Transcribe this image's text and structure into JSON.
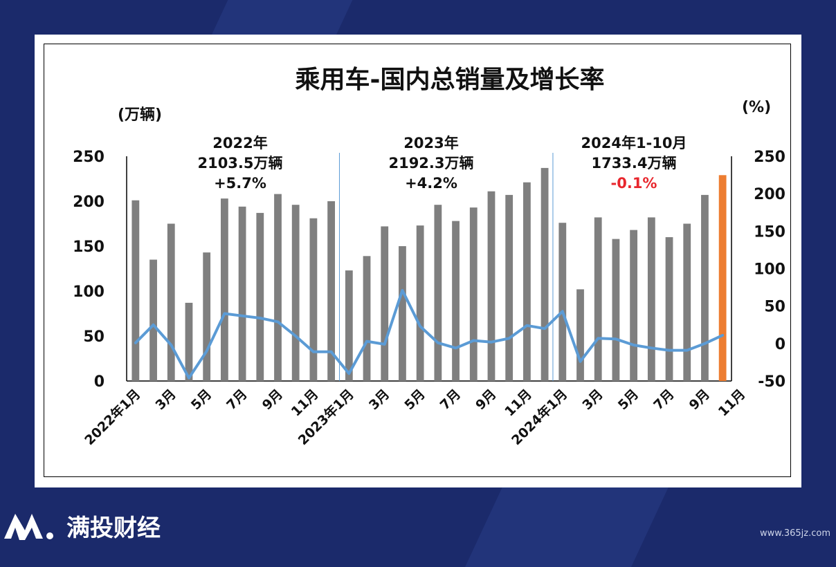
{
  "brand": {
    "name": "满投财经",
    "site": "www.365jz.com"
  },
  "colors": {
    "bar": "#7f7f7f",
    "bar_highlight": "#ed7d31",
    "line": "#5b9bd5",
    "separator": "#5b9bd5",
    "negative": "#e8262d"
  },
  "chart_data": {
    "type": "bar",
    "title": "乘用车-国内总销量及增长率",
    "left_unit": "(万辆)",
    "right_unit": "(%)",
    "left_ticks": [
      "250",
      "200",
      "150",
      "100",
      "50",
      "0"
    ],
    "right_ticks": [
      "250",
      "200",
      "150",
      "100",
      "50",
      "0",
      "-50"
    ],
    "ylim": [
      0,
      250
    ],
    "y2lim": [
      -50,
      250
    ],
    "x_tick_labels": [
      "2022年1月",
      "3月",
      "5月",
      "7月",
      "9月",
      "11月",
      "2023年1月",
      "3月",
      "5月",
      "7月",
      "9月",
      "11月",
      "2024年1月",
      "3月",
      "5月",
      "7月",
      "9月",
      "11月"
    ],
    "categories": [
      "2022-01",
      "2022-02",
      "2022-03",
      "2022-04",
      "2022-05",
      "2022-06",
      "2022-07",
      "2022-08",
      "2022-09",
      "2022-10",
      "2022-11",
      "2022-12",
      "2023-01",
      "2023-02",
      "2023-03",
      "2023-04",
      "2023-05",
      "2023-06",
      "2023-07",
      "2023-08",
      "2023-09",
      "2023-10",
      "2023-11",
      "2023-12",
      "2024-01",
      "2024-02",
      "2024-03",
      "2024-04",
      "2024-05",
      "2024-06",
      "2024-07",
      "2024-08",
      "2024-09",
      "2024-10"
    ],
    "series": [
      {
        "type": "bar",
        "values": [
          201,
          135,
          175,
          87,
          143,
          203,
          194,
          187,
          208,
          196,
          181,
          200,
          123,
          139,
          172,
          150,
          173,
          196,
          178,
          193,
          211,
          207,
          221,
          237,
          176,
          102,
          182,
          158,
          168,
          182,
          160,
          175,
          207,
          229
        ],
        "highlight_last": true
      },
      {
        "type": "line",
        "axis": "right",
        "values": [
          1,
          25,
          -2,
          -46,
          -10,
          40,
          37,
          34,
          29,
          10,
          -11,
          -11,
          -40,
          3,
          -1,
          71,
          23,
          1,
          -6,
          4,
          2,
          7,
          24,
          20,
          43,
          -24,
          7,
          6,
          -2,
          -6,
          -9,
          -9,
          0,
          11
        ]
      }
    ],
    "annotations": [
      {
        "lines": [
          "2022年",
          "2103.5万辆",
          "+5.7%"
        ]
      },
      {
        "lines": [
          "2023年",
          "2192.3万辆",
          "+4.2%"
        ]
      },
      {
        "lines": [
          "2024年1-10月",
          "1733.4万辆",
          "-0.1%"
        ],
        "last_line_negative": true
      }
    ]
  }
}
